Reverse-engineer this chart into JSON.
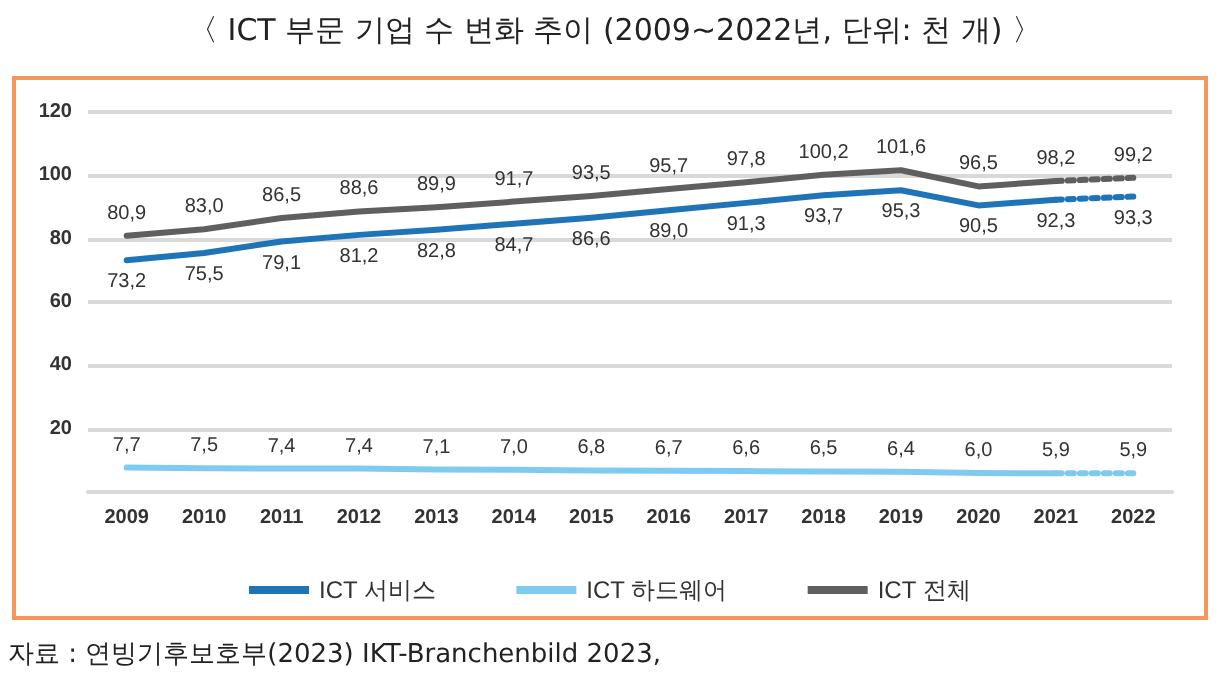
{
  "chart_data": {
    "type": "line",
    "title": "〈 ICT 부문 기업 수 변화 추이 (2009~2022년, 단위: 천 개) 〉",
    "categories": [
      "2009",
      "2010",
      "2011",
      "2012",
      "2013",
      "2014",
      "2015",
      "2016",
      "2017",
      "2018",
      "2019",
      "2020",
      "2021",
      "2022"
    ],
    "series": [
      {
        "name": "ICT 서비스",
        "color": "#1f74b8",
        "line_style": "solid",
        "values": [
          73.2,
          75.5,
          79.1,
          81.2,
          82.8,
          84.7,
          86.6,
          89.0,
          91.3,
          93.7,
          95.3,
          90.5,
          92.3,
          null
        ],
        "value_labels": [
          "73,2",
          "75,5",
          "79,1",
          "81,2",
          "82,8",
          "84,7",
          "86,6",
          "89,0",
          "91,3",
          "93,7",
          "95,3",
          "90,5",
          "92,3",
          null
        ]
      },
      {
        "name": "ICT 하드웨어",
        "color": "#7fcbef",
        "line_style": "solid",
        "values": [
          7.7,
          7.5,
          7.4,
          7.4,
          7.1,
          7.0,
          6.8,
          6.7,
          6.6,
          6.5,
          6.4,
          6.0,
          5.9,
          null
        ],
        "value_labels": [
          "7,7",
          "7,5",
          "7,4",
          "7,4",
          "7,1",
          "7,0",
          "6,8",
          "6,7",
          "6,6",
          "6,5",
          "6,4",
          "6,0",
          "5,9",
          null
        ]
      },
      {
        "name": "ICT 전체",
        "color": "#5f5f5f",
        "line_style": "solid",
        "values": [
          80.9,
          83.0,
          86.5,
          88.6,
          89.9,
          91.7,
          93.5,
          95.7,
          97.8,
          100.2,
          101.6,
          96.5,
          98.2,
          null
        ],
        "value_labels": [
          "80,9",
          "83,0",
          "86,5",
          "88,6",
          "89,9",
          "91,7",
          "93,5",
          "95,7",
          "97,8",
          "100,2",
          "101,6",
          "96,5",
          "98,2",
          null
        ]
      },
      {
        "color": "#1f74b8",
        "line_style": "dotted",
        "values": [
          null,
          null,
          null,
          null,
          null,
          null,
          null,
          null,
          null,
          null,
          null,
          null,
          92.3,
          93.3
        ],
        "value_labels": [
          null,
          null,
          null,
          null,
          null,
          null,
          null,
          null,
          null,
          null,
          null,
          null,
          null,
          "93,3"
        ]
      },
      {
        "color": "#7fcbef",
        "line_style": "dotted",
        "values": [
          null,
          null,
          null,
          null,
          null,
          null,
          null,
          null,
          null,
          null,
          null,
          null,
          5.9,
          5.9
        ],
        "value_labels": [
          null,
          null,
          null,
          null,
          null,
          null,
          null,
          null,
          null,
          null,
          null,
          null,
          null,
          "5,9"
        ]
      },
      {
        "color": "#5f5f5f",
        "line_style": "dotted",
        "values": [
          null,
          null,
          null,
          null,
          null,
          null,
          null,
          null,
          null,
          null,
          null,
          null,
          98.2,
          99.2
        ],
        "value_labels": [
          null,
          null,
          null,
          null,
          null,
          null,
          null,
          null,
          null,
          null,
          null,
          null,
          null,
          "99,2"
        ]
      }
    ],
    "ylim": [
      0,
      120
    ],
    "yticks": [
      {
        "value": 0,
        "label": null
      },
      20,
      40,
      60,
      80,
      100,
      120
    ],
    "grid": "y",
    "legend": "bottom",
    "marker": "none",
    "annotations": [
      "자료 : 연빙기후보호부(2023) IKT-Branchenbild 2023,"
    ]
  }
}
